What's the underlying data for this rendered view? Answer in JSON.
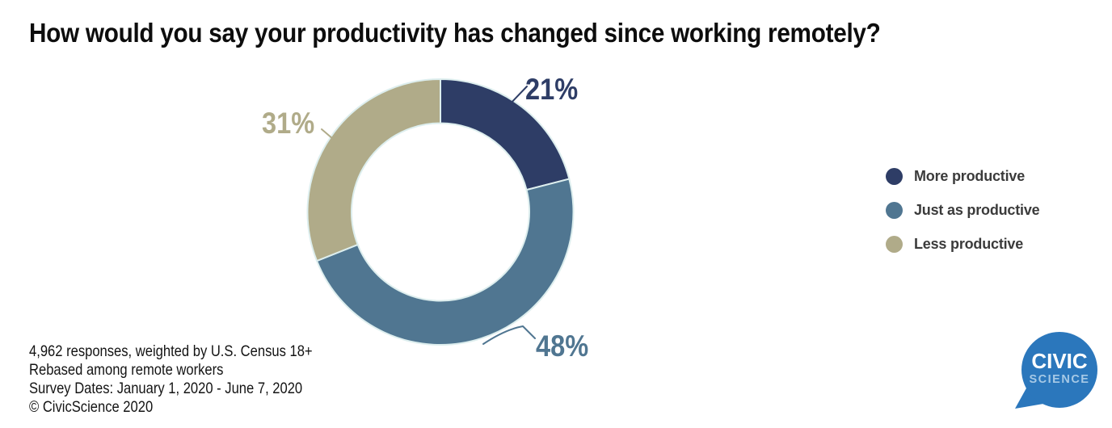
{
  "title": "How would you say your productivity has changed since working remotely?",
  "chart_data": {
    "type": "pie",
    "subtype": "donut",
    "title": "How would you say your productivity has changed since working remotely?",
    "categories": [
      "More productive",
      "Just as productive",
      "Less productive"
    ],
    "values": [
      21,
      48,
      31
    ],
    "point_labels": [
      "21%",
      "48%",
      "31%"
    ],
    "colors": [
      "#2e3d66",
      "#507691",
      "#b0ab89"
    ],
    "separator_color": "#ddeeee",
    "start_angle_deg": 0,
    "direction": "clockwise",
    "donut_hole_ratio": 0.67,
    "legend_position": "right",
    "grid": "off"
  },
  "footer": {
    "lines": [
      "4,962 responses, weighted by U.S. Census 18+",
      "Rebased among remote workers",
      "Survey Dates: January 1, 2020 - June 7, 2020",
      "© CivicScience 2020"
    ]
  },
  "logo": {
    "line1": "CIVIC",
    "line2": "SCIENCE",
    "color": "#2b77bc"
  }
}
